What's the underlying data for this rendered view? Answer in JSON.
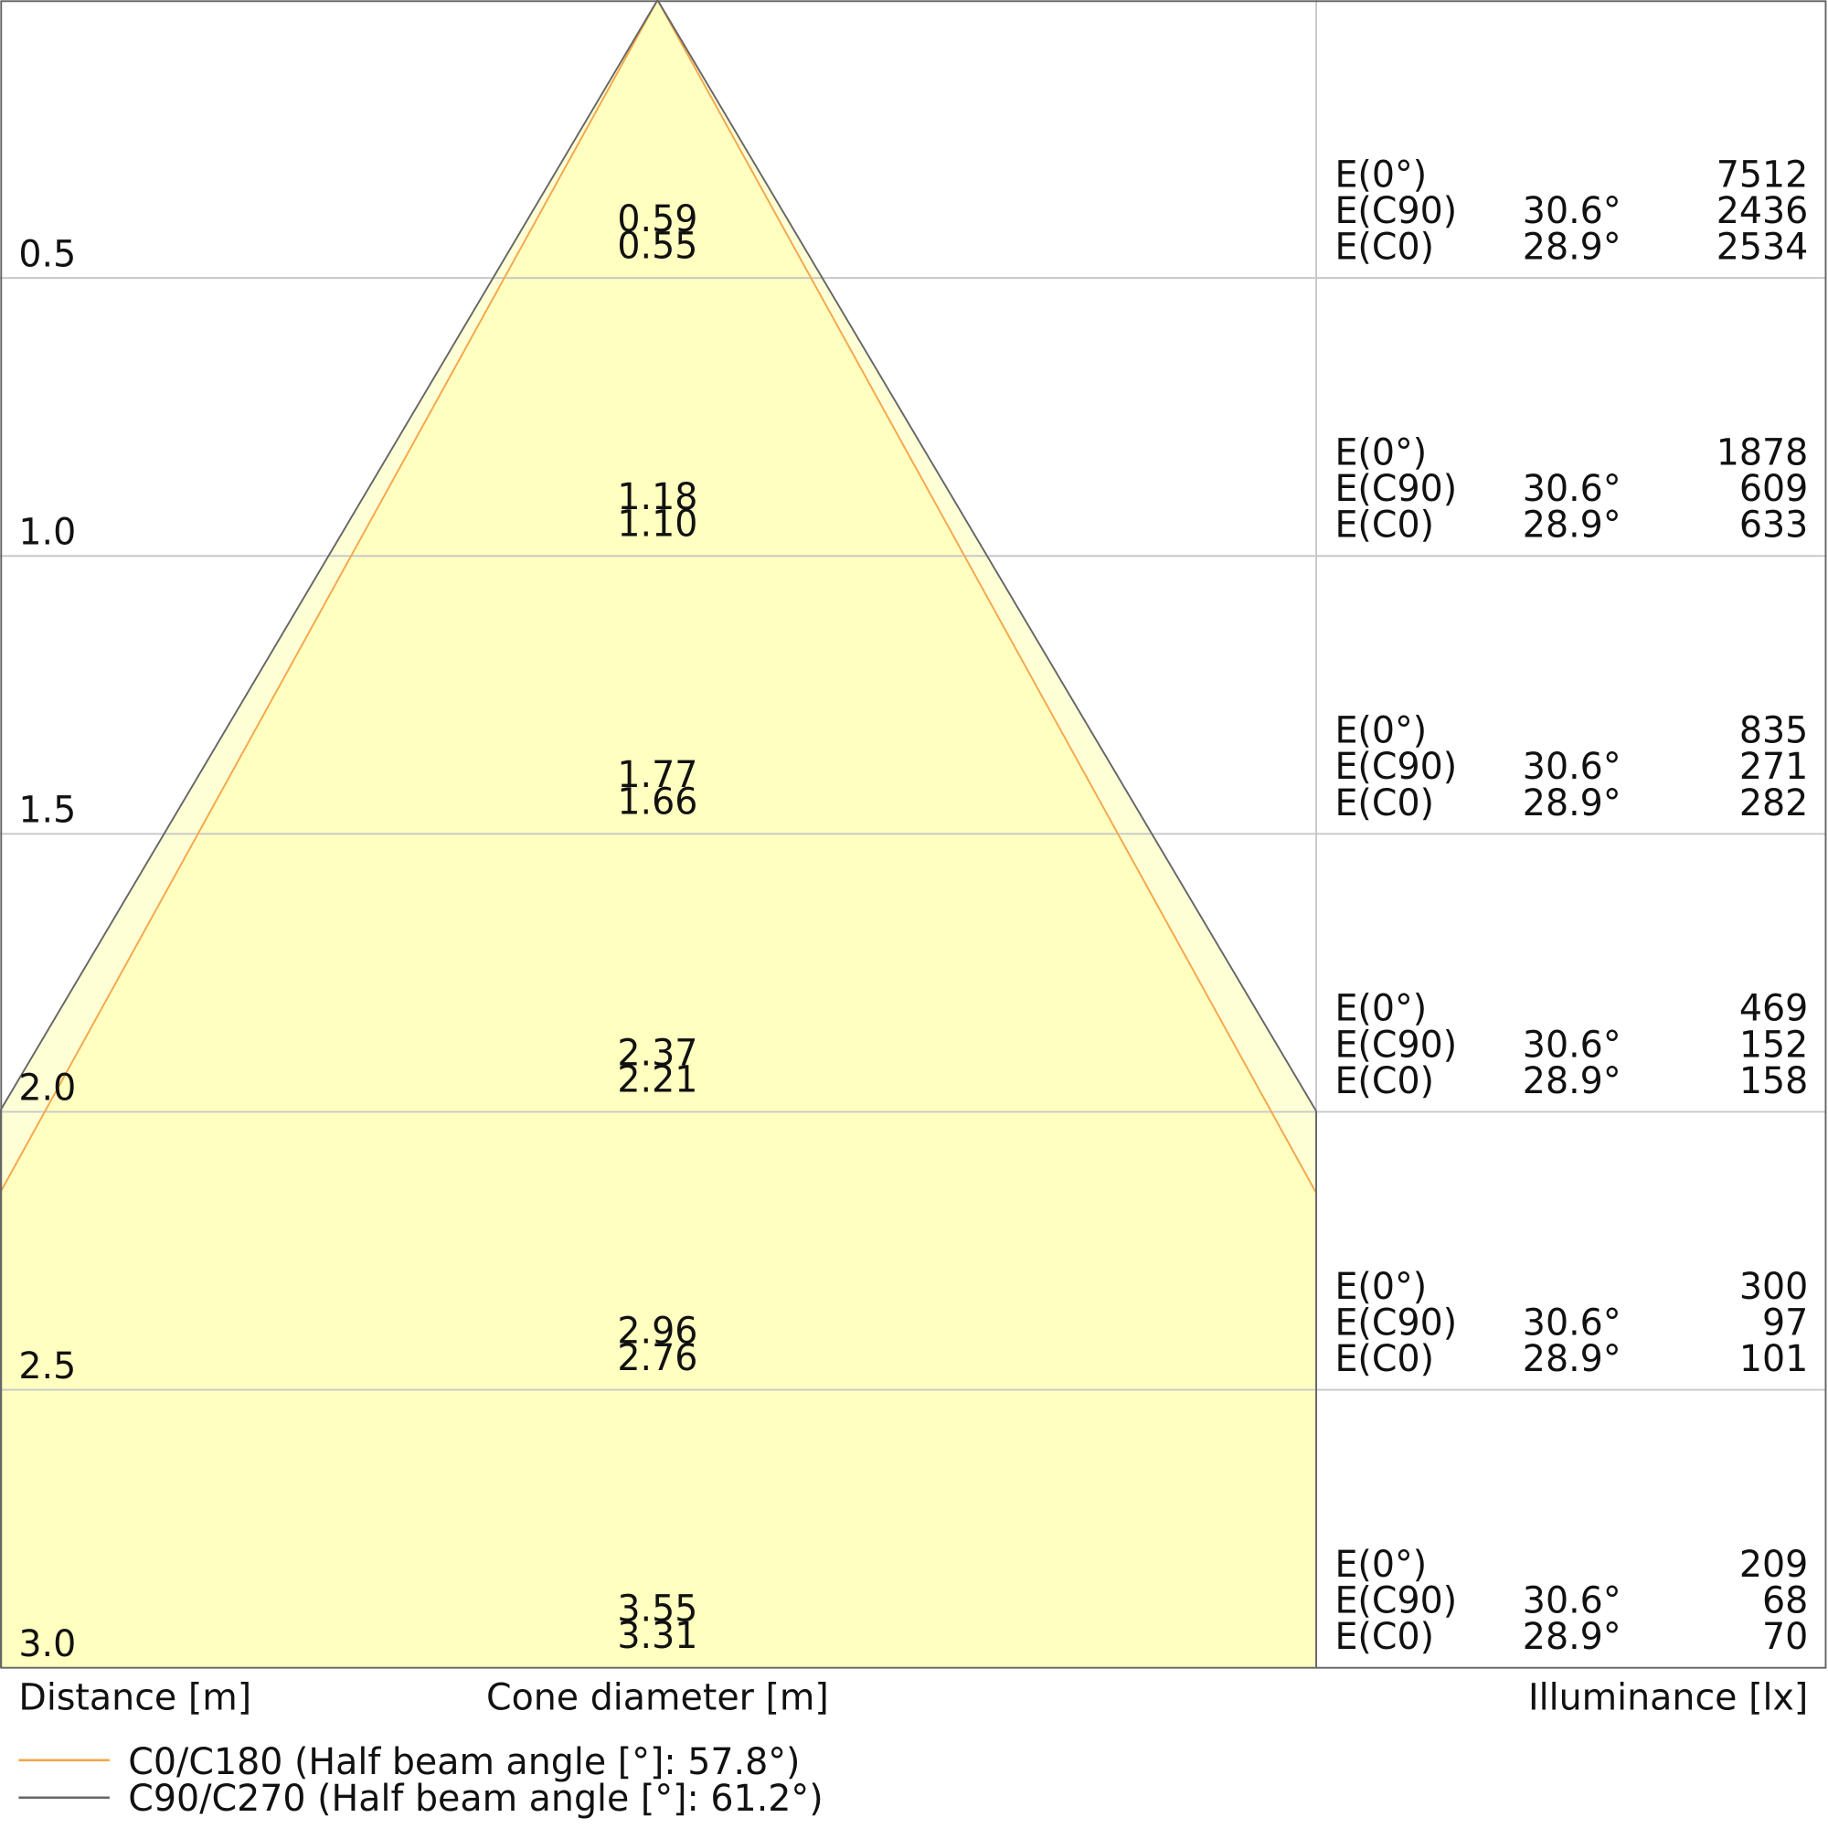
{
  "rows": [
    {
      "distance": "0.5",
      "diameter_c90": "0.59",
      "diameter_c0": "0.55",
      "e0": "7512",
      "ec90": "2436",
      "ec0": "2534"
    },
    {
      "distance": "1.0",
      "diameter_c90": "1.18",
      "diameter_c0": "1.10",
      "e0": "1878",
      "ec90": "609",
      "ec0": "633"
    },
    {
      "distance": "1.5",
      "diameter_c90": "1.77",
      "diameter_c0": "1.66",
      "e0": "835",
      "ec90": "271",
      "ec0": "282"
    },
    {
      "distance": "2.0",
      "diameter_c90": "2.37",
      "diameter_c0": "2.21",
      "e0": "469",
      "ec90": "152",
      "ec0": "158"
    },
    {
      "distance": "2.5",
      "diameter_c90": "2.96",
      "diameter_c0": "2.76",
      "e0": "300",
      "ec90": "97",
      "ec0": "101"
    },
    {
      "distance": "3.0",
      "diameter_c90": "3.55",
      "diameter_c0": "3.31",
      "e0": "209",
      "ec90": "68",
      "ec0": "70"
    }
  ],
  "row_labels": {
    "e0": "E(0°)",
    "ec90": "E(C90)",
    "ec0": "E(C0)",
    "angle_c90": "30.6°",
    "angle_c0": "28.9°"
  },
  "axis_labels": {
    "distance": "Distance [m]",
    "diameter": "Cone diameter [m]",
    "illuminance": "Illuminance [lx]"
  },
  "legend": [
    "C0/C180 (Half beam angle [°]: 57.8°)",
    "C90/C270 (Half beam angle [°]: 61.2°)"
  ]
}
